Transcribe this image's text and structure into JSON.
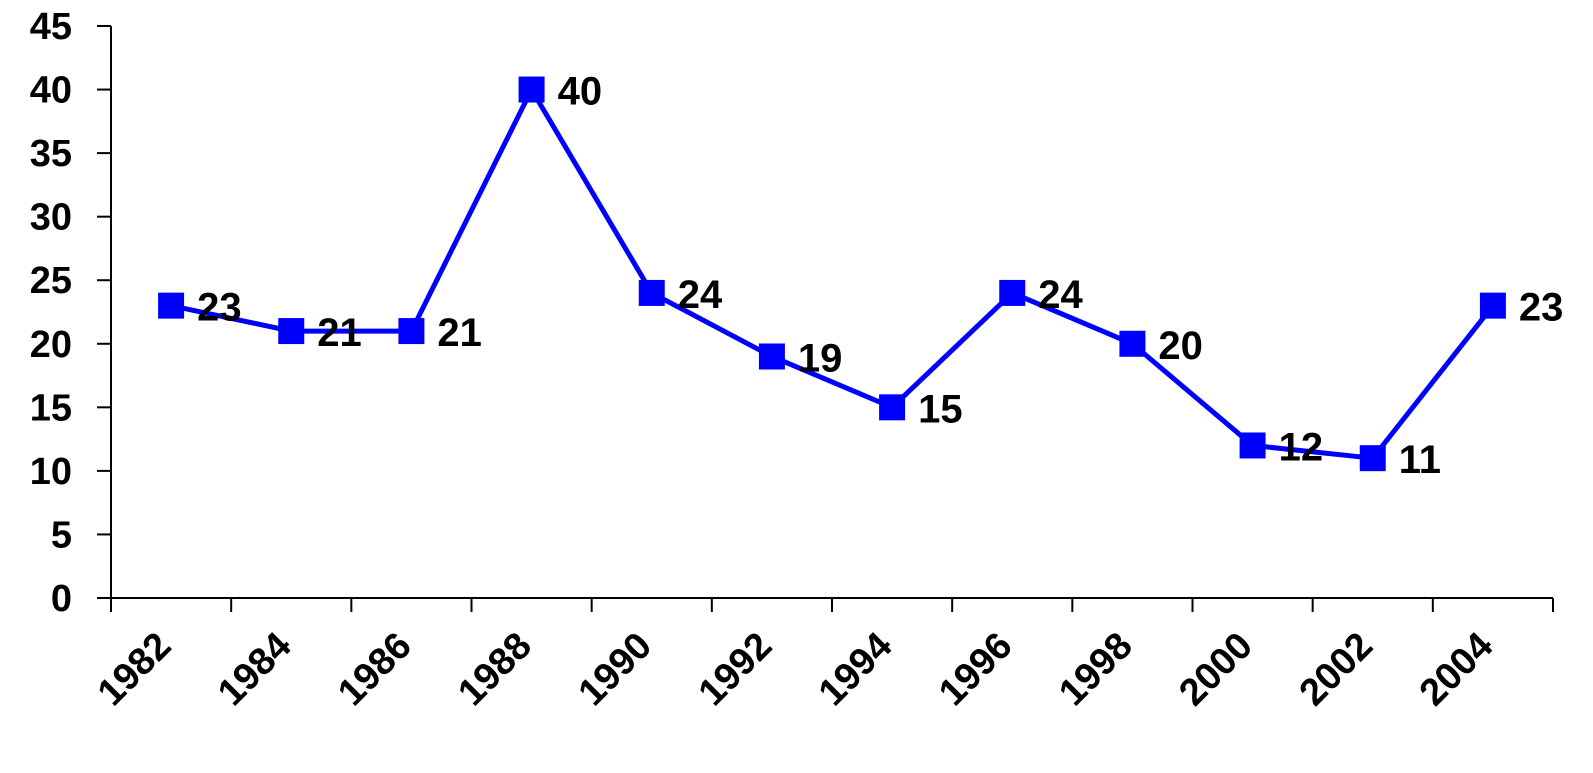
{
  "chart_data": {
    "type": "line",
    "x_tick_labels": [
      "1982",
      "1984",
      "1986",
      "1988",
      "1990",
      "1992",
      "1994",
      "1996",
      "1998",
      "2000",
      "2002",
      "2004"
    ],
    "y_tick_labels": [
      "0",
      "5",
      "10",
      "15",
      "20",
      "25",
      "30",
      "35",
      "40",
      "45"
    ],
    "ylim": [
      0,
      45
    ],
    "grid": false,
    "series": [
      {
        "values": [
          23,
          21,
          21,
          40,
          24,
          19,
          15,
          24,
          20,
          12,
          11,
          23
        ],
        "labels": [
          "23",
          "21",
          "21",
          "40",
          "24",
          "19",
          "15",
          "24",
          "20",
          "12",
          "11",
          "23"
        ],
        "color": "#0000ff",
        "marker": "square"
      }
    ],
    "axis_color": "#000000"
  }
}
